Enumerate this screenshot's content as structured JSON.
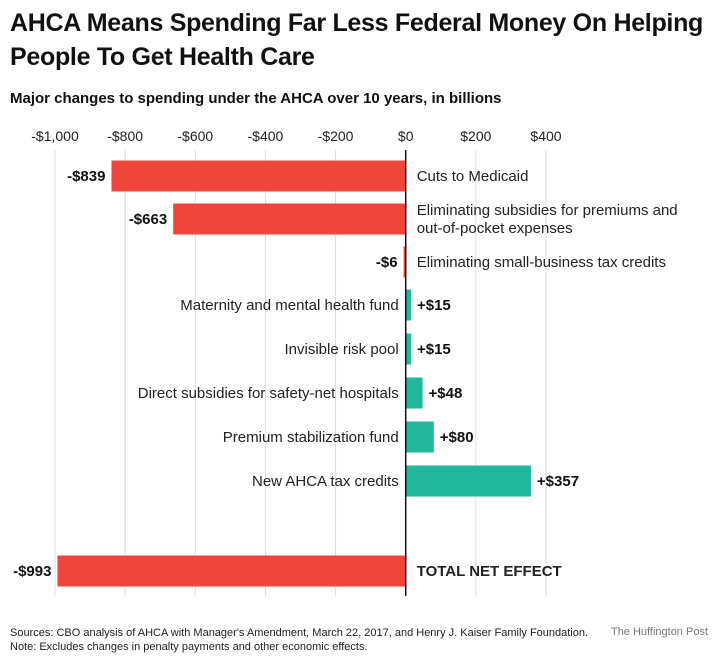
{
  "header": {
    "title": "AHCA Means Spending Far Less Federal Money On Helping People To Get Health Care",
    "subtitle": "Major changes to spending under the AHCA over 10 years, in billions"
  },
  "footer": {
    "sources": "Sources: CBO analysis of AHCA with Manager's Amendment, March 22, 2017, and Henry J. Kaiser Family Foundation.",
    "note": "Note: Excludes changes in penalty payments and other economic effects.",
    "credit": "The Huffington Post"
  },
  "chart_data": {
    "type": "bar",
    "orientation": "horizontal",
    "title": "AHCA Means Spending Far Less Federal Money On Helping People To Get Health Care",
    "subtitle": "Major changes to spending under the AHCA over 10 years, in billions",
    "xlim": [
      -1000,
      400
    ],
    "x_ticks": [
      -1000,
      -800,
      -600,
      -400,
      -200,
      0,
      200,
      400
    ],
    "x_tick_labels": [
      "-$1,000",
      "-$800",
      "-$600",
      "-$400",
      "-$200",
      "$0",
      "$200",
      "$400"
    ],
    "grid": true,
    "colors": {
      "negative": "#f0453a",
      "positive": "#1fb89a"
    },
    "bars": [
      {
        "category": [
          "Cuts to Medicaid"
        ],
        "value": -839,
        "label": "-$839"
      },
      {
        "category": [
          "Eliminating subsidies for premiums and",
          "out-of-pocket expenses"
        ],
        "value": -663,
        "label": "-$663"
      },
      {
        "category": [
          "Eliminating small-business tax credits"
        ],
        "value": -6,
        "label": "-$6"
      },
      {
        "category": [
          "Maternity and mental health fund"
        ],
        "value": 15,
        "label": "+$15"
      },
      {
        "category": [
          "Invisible risk pool"
        ],
        "value": 15,
        "label": "+$15"
      },
      {
        "category": [
          "Direct subsidies for safety-net hospitals"
        ],
        "value": 48,
        "label": "+$48"
      },
      {
        "category": [
          "Premium stabilization fund"
        ],
        "value": 80,
        "label": "+$80"
      },
      {
        "category": [
          "New AHCA tax credits"
        ],
        "value": 357,
        "label": "+$357"
      }
    ],
    "total": {
      "category": [
        "TOTAL NET EFFECT"
      ],
      "value": -993,
      "label": "-$993"
    }
  }
}
